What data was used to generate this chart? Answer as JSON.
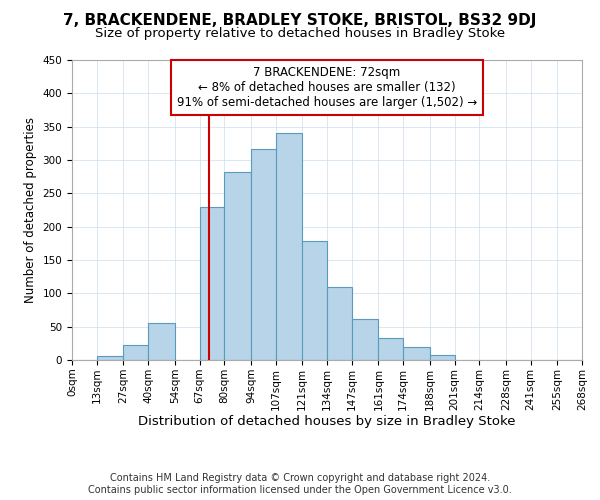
{
  "title": "7, BRACKENDENE, BRADLEY STOKE, BRISTOL, BS32 9DJ",
  "subtitle": "Size of property relative to detached houses in Bradley Stoke",
  "xlabel": "Distribution of detached houses by size in Bradley Stoke",
  "ylabel": "Number of detached properties",
  "footer_lines": [
    "Contains HM Land Registry data © Crown copyright and database right 2024.",
    "Contains public sector information licensed under the Open Government Licence v3.0."
  ],
  "bin_edges": [
    0,
    13,
    27,
    40,
    54,
    67,
    80,
    94,
    107,
    121,
    134,
    147,
    161,
    174,
    188,
    201,
    214,
    228,
    241,
    255,
    268
  ],
  "bin_labels": [
    "0sqm",
    "13sqm",
    "27sqm",
    "40sqm",
    "54sqm",
    "67sqm",
    "80sqm",
    "94sqm",
    "107sqm",
    "121sqm",
    "134sqm",
    "147sqm",
    "161sqm",
    "174sqm",
    "188sqm",
    "201sqm",
    "214sqm",
    "228sqm",
    "241sqm",
    "255sqm",
    "268sqm"
  ],
  "counts": [
    0,
    6,
    22,
    55,
    0,
    230,
    282,
    317,
    340,
    178,
    110,
    62,
    33,
    19,
    8,
    0,
    0,
    0,
    0,
    0
  ],
  "bar_color": "#b8d4e8",
  "bar_edge_color": "#5a9abf",
  "vline_x": 72,
  "vline_color": "#cc0000",
  "annotation_text": "7 BRACKENDENE: 72sqm\n← 8% of detached houses are smaller (132)\n91% of semi-detached houses are larger (1,502) →",
  "annotation_box_edgecolor": "#cc0000",
  "annotation_box_facecolor": "#ffffff",
  "ylim": [
    0,
    450
  ],
  "yticks": [
    0,
    50,
    100,
    150,
    200,
    250,
    300,
    350,
    400,
    450
  ],
  "title_fontsize": 11,
  "subtitle_fontsize": 9.5,
  "xlabel_fontsize": 9.5,
  "ylabel_fontsize": 8.5,
  "footer_fontsize": 7,
  "tick_fontsize": 7.5,
  "annotation_fontsize": 8.5
}
